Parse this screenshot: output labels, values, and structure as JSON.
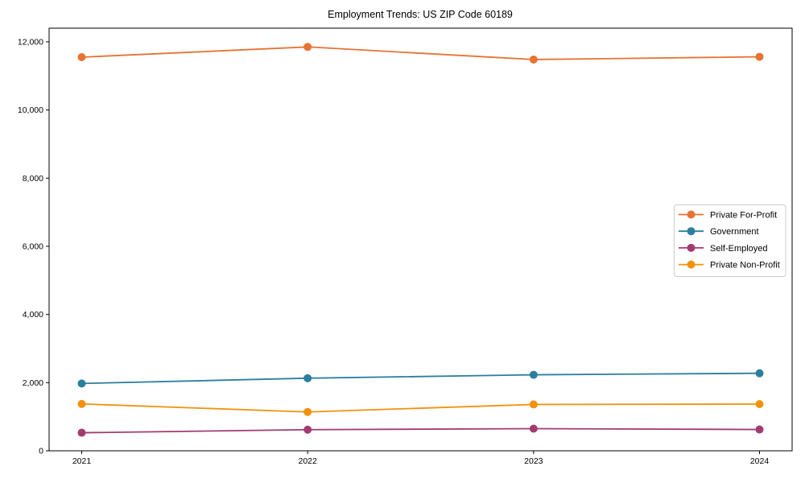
{
  "chart_data": {
    "type": "line",
    "title": "Employment Trends: US ZIP Code 60189",
    "xlabel": "",
    "ylabel": "",
    "x": [
      "2021",
      "2022",
      "2023",
      "2024"
    ],
    "series": [
      {
        "name": "Private For-Profit",
        "color": "#E77333",
        "values": [
          11550,
          11850,
          11480,
          11560
        ]
      },
      {
        "name": "Government",
        "color": "#2A7F9E",
        "values": [
          1975,
          2130,
          2230,
          2275
        ]
      },
      {
        "name": "Self-Employed",
        "color": "#A23B72",
        "values": [
          530,
          620,
          650,
          625
        ]
      },
      {
        "name": "Private Non-Profit",
        "color": "#F2920D",
        "values": [
          1375,
          1140,
          1360,
          1370
        ]
      }
    ],
    "ylim": [
      0,
      12400
    ],
    "yticks": [
      0,
      2000,
      4000,
      6000,
      8000,
      10000,
      12000
    ],
    "ytick_format": "thousands-comma",
    "grid": false,
    "legend": {
      "position": "middle-right",
      "border_color": "#cccccc",
      "background": "#ffffff"
    },
    "marker": "circle",
    "background": "#ffffff",
    "spine_color": "#000000"
  }
}
